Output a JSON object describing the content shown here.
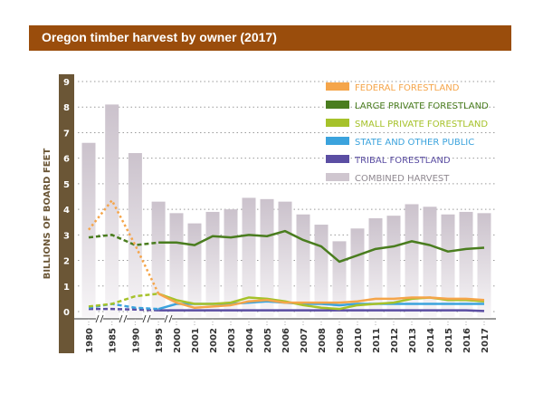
{
  "chart_data": {
    "type": "bar+line",
    "title": "Oregon timber harvest by owner (2017)",
    "ylabel": "BILLIONS OF BOARD FEET",
    "xlabel": "",
    "ylim": [
      0,
      9
    ],
    "yticks": [
      0,
      1,
      2,
      3,
      4,
      5,
      6,
      7,
      8,
      9
    ],
    "grid": true,
    "legend_placement": "top-right",
    "categories": [
      "1980",
      "1985",
      "1990",
      "1995",
      "2000",
      "2001",
      "2002",
      "2003",
      "2004",
      "2005",
      "2006",
      "2007",
      "2008",
      "2009",
      "2010",
      "2011",
      "2012",
      "2013",
      "2014",
      "2015",
      "2016",
      "2017"
    ],
    "dashed_until": "1995",
    "bars": {
      "name": "COMBINED HARVEST",
      "color": "#cfc6cf",
      "values": [
        6.6,
        8.1,
        6.2,
        4.3,
        3.85,
        3.45,
        3.9,
        4.0,
        4.45,
        4.4,
        4.3,
        3.8,
        3.4,
        2.75,
        3.25,
        3.65,
        3.75,
        4.2,
        4.1,
        3.8,
        3.9,
        3.85
      ]
    },
    "series": [
      {
        "name": "FEDERAL FORESTLAND",
        "color": "#f5a54a",
        "values": [
          3.2,
          4.35,
          2.6,
          0.7,
          0.35,
          0.15,
          0.2,
          0.25,
          0.4,
          0.45,
          0.35,
          0.35,
          0.35,
          0.35,
          0.4,
          0.5,
          0.5,
          0.55,
          0.55,
          0.5,
          0.5,
          0.45
        ]
      },
      {
        "name": "LARGE PRIVATE FORESTLAND",
        "color": "#4a7d1f",
        "values": [
          2.9,
          3.0,
          2.6,
          2.7,
          2.7,
          2.6,
          2.95,
          2.9,
          3.0,
          2.95,
          3.15,
          2.8,
          2.55,
          1.95,
          2.2,
          2.45,
          2.55,
          2.75,
          2.6,
          2.35,
          2.45,
          2.5
        ]
      },
      {
        "name": "SMALL PRIVATE FORESTLAND",
        "color": "#a6c22a",
        "values": [
          0.2,
          0.3,
          0.6,
          0.7,
          0.45,
          0.3,
          0.3,
          0.35,
          0.55,
          0.5,
          0.4,
          0.25,
          0.15,
          0.1,
          0.25,
          0.3,
          0.35,
          0.5,
          0.55,
          0.45,
          0.45,
          0.4
        ]
      },
      {
        "name": "STATE AND OTHER PUBLIC",
        "color": "#3ba3dd",
        "values": [
          0.15,
          0.3,
          0.15,
          0.1,
          0.3,
          0.3,
          0.3,
          0.3,
          0.35,
          0.4,
          0.35,
          0.3,
          0.3,
          0.25,
          0.3,
          0.3,
          0.3,
          0.3,
          0.3,
          0.3,
          0.3,
          0.3
        ]
      },
      {
        "name": "TRIBAL FORESTLAND",
        "color": "#5b4ea3",
        "values": [
          0.1,
          0.1,
          0.08,
          0.05,
          0.05,
          0.05,
          0.05,
          0.05,
          0.05,
          0.05,
          0.05,
          0.05,
          0.05,
          0.05,
          0.05,
          0.05,
          0.05,
          0.05,
          0.05,
          0.05,
          0.05,
          0.02
        ]
      }
    ]
  },
  "colors": {
    "title_bar": "#9a4d0c",
    "axis_bar": "#6b5636"
  }
}
